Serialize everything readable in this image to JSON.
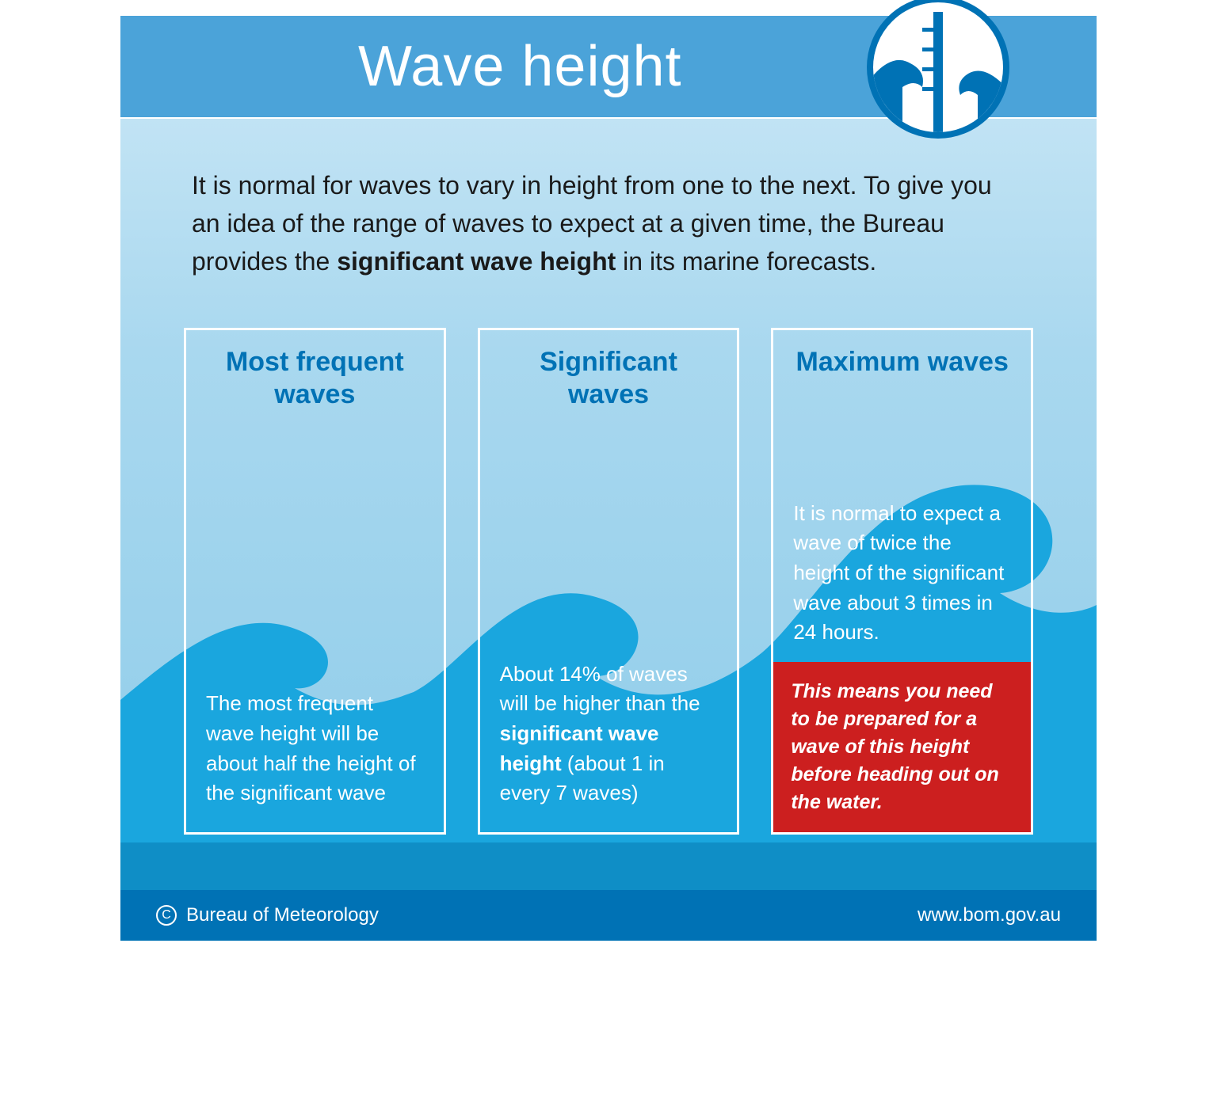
{
  "colors": {
    "header_band": "#4ba3d9",
    "body_gradient_top": "#c1e3f4",
    "body_gradient_bottom": "#8ecce9",
    "wave_fill": "#1aa6de",
    "wave_deep": "#0f8ec6",
    "card_title": "#0072b5",
    "card_border": "#ffffff",
    "warning_bg": "#cc1f1f",
    "footer_bg": "#0072b5",
    "text_dark": "#1a1a1a",
    "text_light": "#ffffff"
  },
  "header": {
    "title": "Wave height",
    "icon_name": "wave-gauge-icon"
  },
  "intro": {
    "pre": "It is normal for waves to vary in height from one to the next. To give you an idea of the range of waves to expect at a given time, the Bureau provides the ",
    "bold": "significant wave height",
    "post": " in its marine forecasts."
  },
  "cards": [
    {
      "title": "Most frequent waves",
      "body_html": "The most frequent wave height will be about half the height of the significant wave"
    },
    {
      "title": "Significant waves",
      "body_html": "About 14% of waves will be higher than the <b>significant wave height</b> (about 1 in every 7 waves)"
    },
    {
      "title": "Maximum waves",
      "body_html": "It is normal to expect a wave of twice the height of the significant wave about 3 times in 24 hours.",
      "warning": "This means you need to be prepared for a wave of this height before heading out on the water."
    }
  ],
  "wave_shape": {
    "description": "Single continuous wave rising left-to-right across 3 panels, small crest in panel 1, medium crest in panel 2, large crest in panel 3",
    "fill": "#1aa6de"
  },
  "footer": {
    "org": "Bureau of Meteorology",
    "url": "www.bom.gov.au"
  }
}
